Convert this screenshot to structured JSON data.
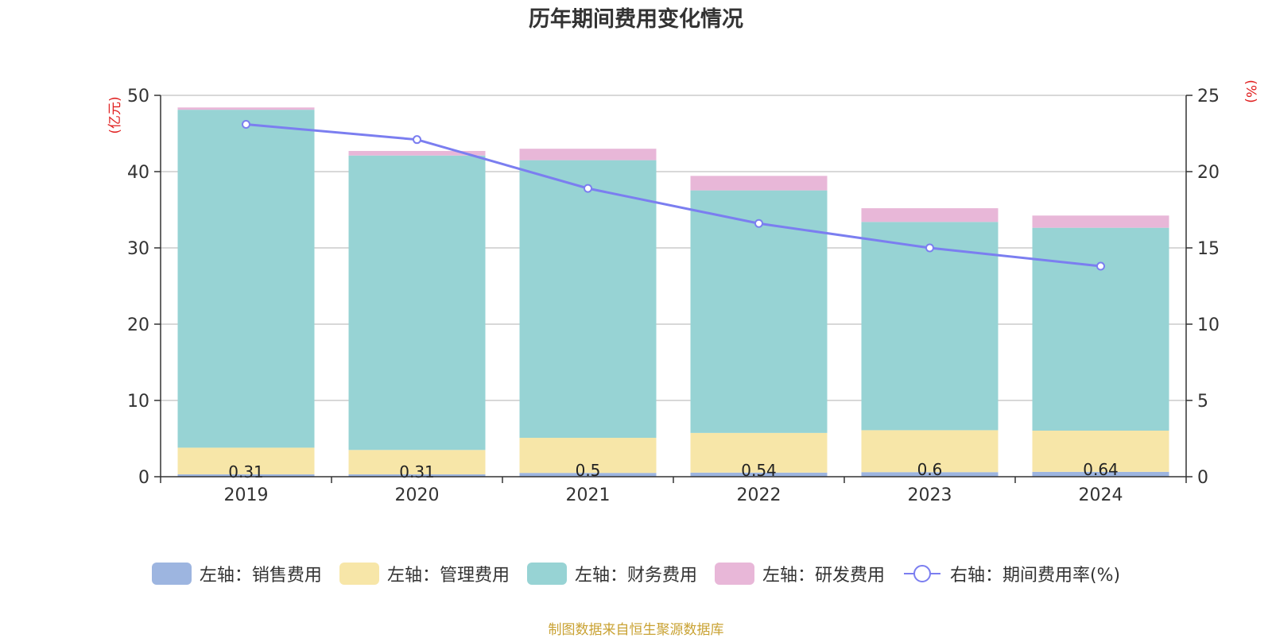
{
  "chart_data": {
    "type": "bar",
    "title": "历年期间费用变化情况",
    "categories": [
      "2019",
      "2020",
      "2021",
      "2022",
      "2023",
      "2024"
    ],
    "left_axis": {
      "label": "(亿元)",
      "ylim": [
        0,
        50
      ],
      "ticks": [
        0,
        10,
        20,
        30,
        40,
        50
      ]
    },
    "right_axis": {
      "label": "(%)",
      "ylim": [
        0,
        25
      ],
      "ticks": [
        0,
        5,
        10,
        15,
        20,
        25
      ]
    },
    "series": [
      {
        "name": "左轴：销售费用",
        "kind": "bar",
        "stack": true,
        "color": "#9db5e0",
        "values": [
          0.31,
          0.31,
          0.5,
          0.54,
          0.6,
          0.64
        ],
        "data_labels": [
          "0.31",
          "0.31",
          "0.5",
          "0.54",
          "0.6",
          "0.64"
        ]
      },
      {
        "name": "左轴：管理费用",
        "kind": "bar",
        "stack": true,
        "color": "#f7e6a8",
        "values": [
          3.5,
          3.2,
          4.6,
          5.2,
          5.5,
          5.4
        ]
      },
      {
        "name": "左轴：财务费用",
        "kind": "bar",
        "stack": true,
        "color": "#97d3d4",
        "values": [
          44.3,
          38.6,
          36.4,
          31.8,
          27.3,
          26.6
        ]
      },
      {
        "name": "左轴：研发费用",
        "kind": "bar",
        "stack": true,
        "color": "#e8b7d8",
        "values": [
          0.3,
          0.6,
          1.5,
          1.9,
          1.8,
          1.6
        ]
      },
      {
        "name": "右轴：期间费用率(%)",
        "kind": "line",
        "axis": "right",
        "color": "#7b7ef0",
        "values": [
          23.1,
          22.1,
          18.9,
          16.6,
          15.0,
          13.8
        ]
      }
    ],
    "grid": true,
    "legend_position": "bottom"
  },
  "source_note": "制图数据来自恒生聚源数据库"
}
